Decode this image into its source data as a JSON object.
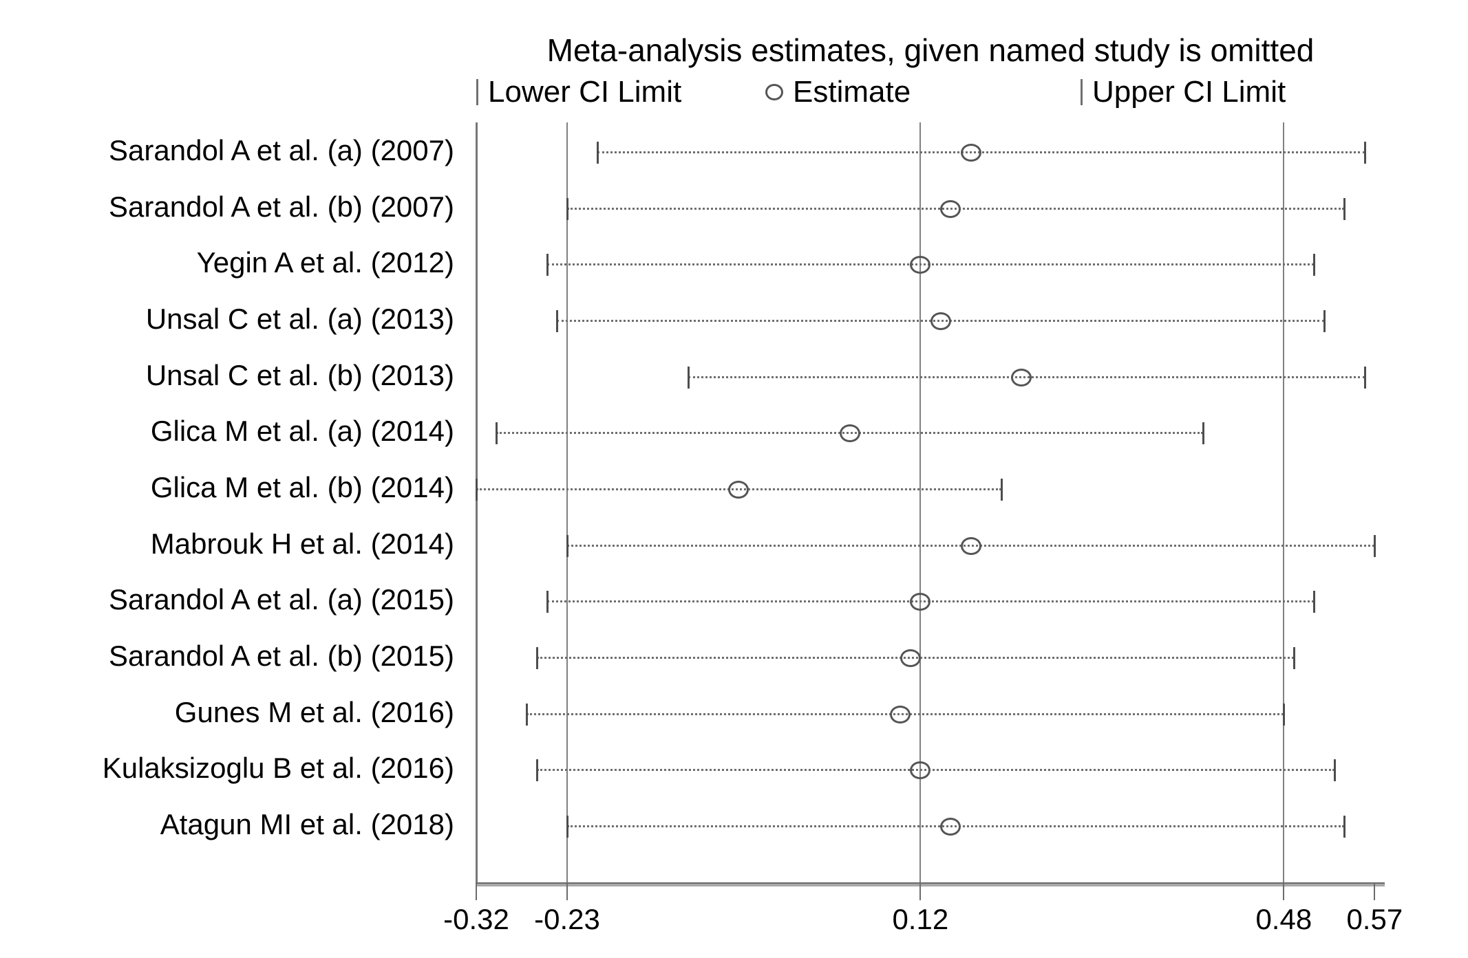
{
  "chart_data": {
    "type": "forest",
    "title": "Meta-analysis estimates, given named study is omitted",
    "legend": {
      "lower": "Lower CI Limit",
      "estimate": "Estimate",
      "upper": "Upper CI Limit"
    },
    "x_ticks": [
      -0.32,
      -0.23,
      0.12,
      0.48,
      0.57
    ],
    "x_tick_labels": [
      "-0.32",
      "-0.23",
      "0.12",
      "0.48",
      "0.57"
    ],
    "reference_lines": [
      -0.23,
      0.12,
      0.48
    ],
    "overall": {
      "lower": -0.23,
      "estimate": 0.12,
      "upper": 0.48
    },
    "xlim": [
      -0.32,
      0.58
    ],
    "grid": false,
    "legend_position": "top",
    "studies": [
      {
        "label": "Sarandol A et al.  (a) (2007)",
        "lower": -0.2,
        "estimate": 0.17,
        "upper": 0.56
      },
      {
        "label": "Sarandol A et al. (b) (2007)",
        "lower": -0.23,
        "estimate": 0.15,
        "upper": 0.54
      },
      {
        "label": "Yegin A et al.  (2012)",
        "lower": -0.25,
        "estimate": 0.12,
        "upper": 0.51
      },
      {
        "label": "Unsal C et al. (a) (2013)",
        "lower": -0.24,
        "estimate": 0.14,
        "upper": 0.52
      },
      {
        "label": "Unsal C et al. (b) (2013)",
        "lower": -0.11,
        "estimate": 0.22,
        "upper": 0.56
      },
      {
        "label": "Glica M et al. (a) (2014)",
        "lower": -0.3,
        "estimate": 0.05,
        "upper": 0.4
      },
      {
        "label": "Glica M et al. (b) (2014)",
        "lower": -0.32,
        "estimate": -0.06,
        "upper": 0.2
      },
      {
        "label": "Mabrouk H et al. (2014)",
        "lower": -0.23,
        "estimate": 0.17,
        "upper": 0.57
      },
      {
        "label": "Sarandol A et al. (a) (2015)",
        "lower": -0.25,
        "estimate": 0.12,
        "upper": 0.51
      },
      {
        "label": "Sarandol A et al. (b) (2015)",
        "lower": -0.26,
        "estimate": 0.11,
        "upper": 0.49
      },
      {
        "label": "Gunes M et al. (2016)",
        "lower": -0.27,
        "estimate": 0.1,
        "upper": 0.48
      },
      {
        "label": "Kulaksizoglu B et al. (2016)",
        "lower": -0.26,
        "estimate": 0.12,
        "upper": 0.53
      },
      {
        "label": "Atagun MI et al. (2018)",
        "lower": -0.23,
        "estimate": 0.15,
        "upper": 0.54
      }
    ]
  },
  "colors": {
    "background": "#ffffff",
    "text": "#000000",
    "reference_line": "#808080",
    "plot_border": "#777777",
    "ci_tick": "#4d4d4d",
    "estimate_marker": "#555555",
    "dotted_line": "#6e6e6e",
    "axis_line": "#6b6b6b"
  }
}
